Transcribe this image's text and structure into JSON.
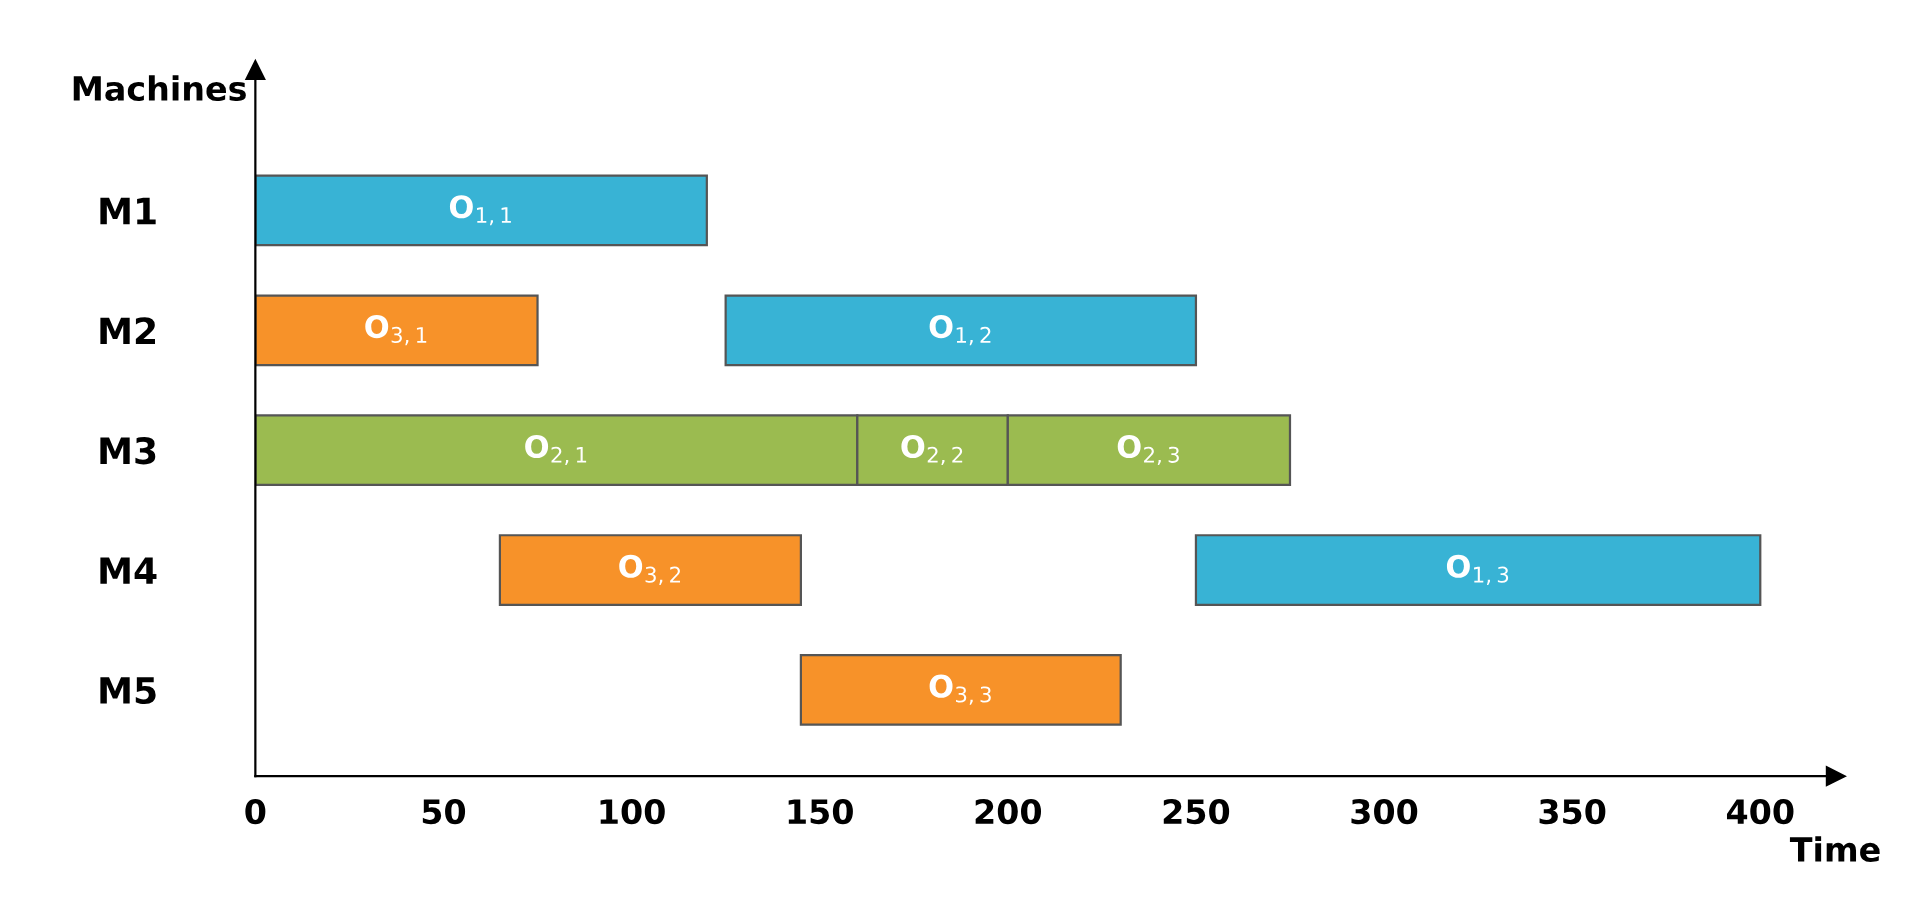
{
  "chart_data": {
    "type": "bar",
    "orientation": "horizontal",
    "xlabel": "Time",
    "ylabel": "Machines",
    "categories": [
      "M1",
      "M2",
      "M3",
      "M4",
      "M5"
    ],
    "series": [
      {
        "base": [
          0,
          0,
          0,
          null,
          null
        ],
        "values": [
          120,
          75,
          160,
          null,
          null
        ],
        "colors": [
          "#38b3d5",
          "#f79229",
          "#9bbb50",
          null,
          null
        ]
      },
      {
        "base": [
          null,
          125,
          160,
          65,
          null
        ],
        "values": [
          null,
          125,
          40,
          80,
          null
        ],
        "colors": [
          null,
          "#38b3d5",
          "#9bbb50",
          "#f79229",
          null
        ]
      },
      {
        "base": [
          null,
          null,
          200,
          250,
          145
        ],
        "values": [
          null,
          null,
          75,
          150,
          85
        ],
        "colors": [
          null,
          null,
          "#9bbb50",
          "#38b3d5",
          "#f79229"
        ]
      }
    ],
    "annotations": [
      "O$_{1,1}$",
      "O$_{3,1}$",
      "O$_{2,1}$",
      "O$_{1,2}$",
      "O$_{2,2}$",
      "O$_{3,2}$",
      "O$_{2,3}$",
      "O$_{1,3}$",
      "O$_{3,3}$"
    ],
    "xlim": [
      0,
      420
    ],
    "xticks": [
      0,
      50,
      100,
      150,
      200,
      250,
      300,
      350,
      400
    ],
    "grid": false
  }
}
